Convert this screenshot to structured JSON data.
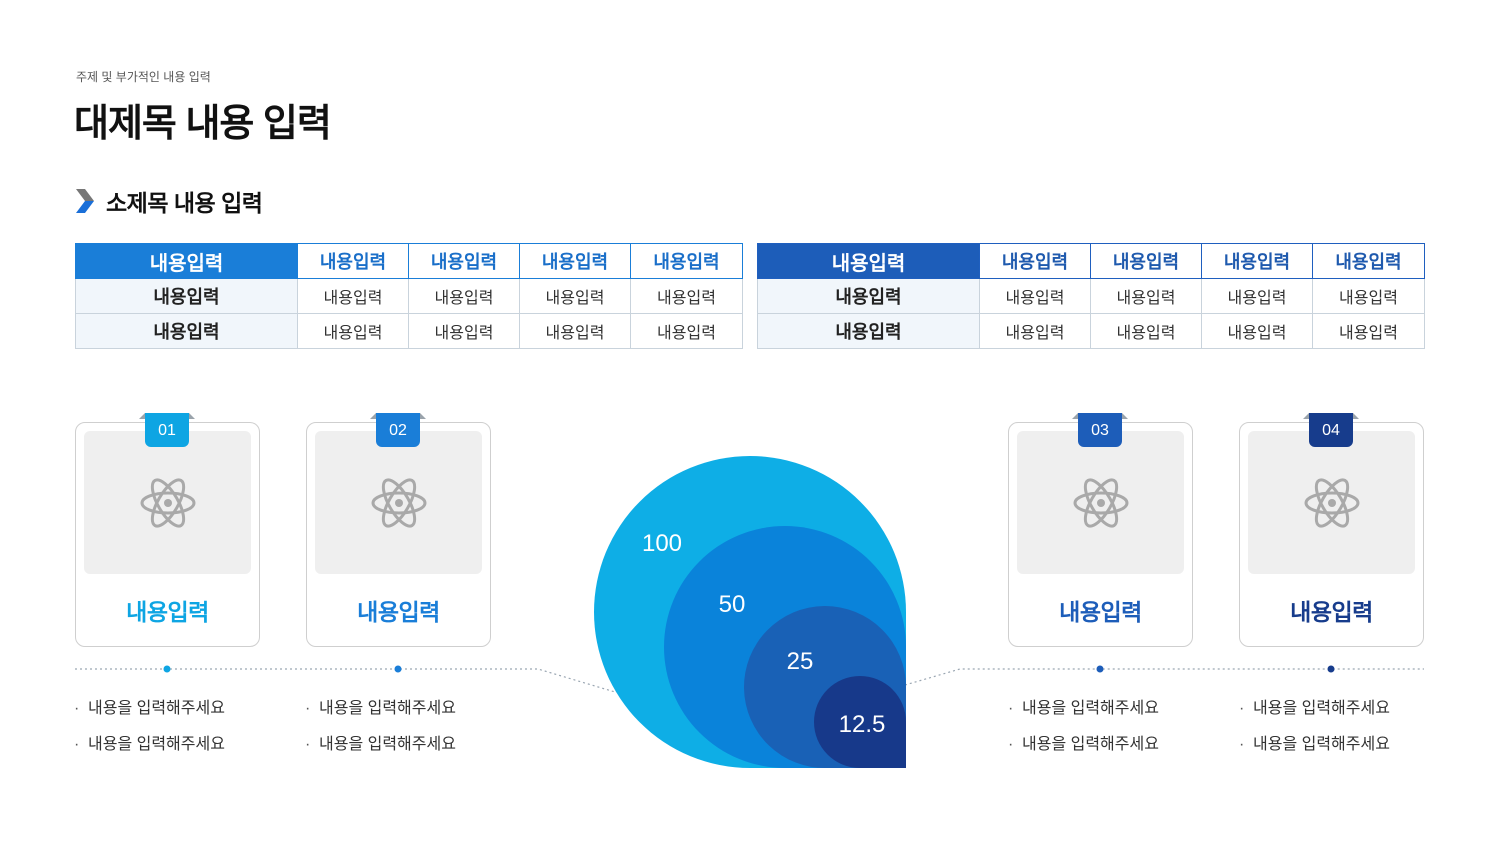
{
  "header": {
    "kicker": "주제 및 부가적인 내용 입력",
    "title": "대제목 내용 입력",
    "subtitle": "소제목 내용 입력"
  },
  "tables": [
    {
      "header": [
        "내용입력",
        "내용입력",
        "내용입력",
        "내용입력",
        "내용입력"
      ],
      "rows": [
        [
          "내용입력",
          "내용입력",
          "내용입력",
          "내용입력",
          "내용입력"
        ],
        [
          "내용입력",
          "내용입력",
          "내용입력",
          "내용입력",
          "내용입력"
        ]
      ],
      "accent": "#1a7ed8"
    },
    {
      "header": [
        "내용입력",
        "내용입력",
        "내용입력",
        "내용입력",
        "내용입력"
      ],
      "rows": [
        [
          "내용입력",
          "내용입력",
          "내용입력",
          "내용입력",
          "내용입력"
        ],
        [
          "내용입력",
          "내용입력",
          "내용입력",
          "내용입력",
          "내용입력"
        ]
      ],
      "accent": "#1d5db9"
    }
  ],
  "cards": [
    {
      "number": "01",
      "label": "내용입력",
      "icon": "atom-icon",
      "color": "#0ea5e3",
      "bullets": [
        "내용을 입력해주세요",
        "내용을 입력해주세요"
      ]
    },
    {
      "number": "02",
      "label": "내용입력",
      "icon": "atom-icon",
      "color": "#1a7ed8",
      "bullets": [
        "내용을 입력해주세요",
        "내용을 입력해주세요"
      ]
    },
    {
      "number": "03",
      "label": "내용입력",
      "icon": "atom-icon",
      "color": "#1d5db9",
      "bullets": [
        "내용을 입력해주세요",
        "내용을 입력해주세요"
      ]
    },
    {
      "number": "04",
      "label": "내용입력",
      "icon": "atom-icon",
      "color": "#173c8c",
      "bullets": [
        "내용을 입력해주세요",
        "내용을 입력해주세요"
      ]
    }
  ],
  "bubbles": [
    {
      "value": "100",
      "color": "#0eaee6"
    },
    {
      "value": "50",
      "color": "#0a83da"
    },
    {
      "value": "25",
      "color": "#1961b6"
    },
    {
      "value": "12.5",
      "color": "#17398a"
    }
  ],
  "bullet_char": "·",
  "colors": {
    "connector": "#9aa6b2",
    "card_border": "#cfcfcf",
    "icon": "#a9a9a9"
  }
}
